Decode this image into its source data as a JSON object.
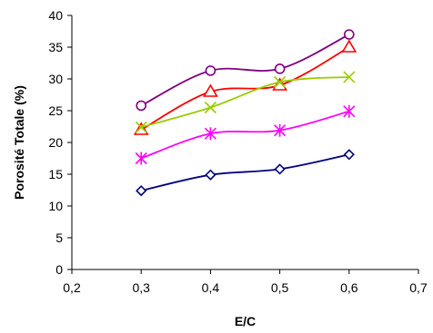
{
  "chart_data": {
    "type": "line",
    "title": "",
    "xlabel": "E/C",
    "ylabel": "Porosité Totale (%)",
    "xlim": [
      0.2,
      0.7
    ],
    "ylim": [
      0,
      40
    ],
    "x_ticks": [
      "0,2",
      "0,3",
      "0,4",
      "0,5",
      "0,6",
      "0,7"
    ],
    "y_ticks": [
      "0",
      "5",
      "10",
      "15",
      "20",
      "25",
      "30",
      "35",
      "40"
    ],
    "grid": false,
    "legend": "none",
    "x": [
      0.3,
      0.4,
      0.5,
      0.6
    ],
    "series": [
      {
        "values": [
          25.8,
          31.3,
          31.6,
          37.0
        ],
        "marker": "circle",
        "color": "#800080"
      },
      {
        "values": [
          22.0,
          28.0,
          29.0,
          35.0
        ],
        "marker": "triangle",
        "color": "#ff0000"
      },
      {
        "values": [
          22.4,
          25.5,
          29.5,
          30.3
        ],
        "marker": "x",
        "color": "#99cc00"
      },
      {
        "values": [
          17.5,
          21.4,
          21.9,
          24.9
        ],
        "marker": "asterisk",
        "color": "#ff00ff"
      },
      {
        "values": [
          12.4,
          14.9,
          15.8,
          18.1
        ],
        "marker": "diamond",
        "color": "#000080"
      }
    ]
  }
}
